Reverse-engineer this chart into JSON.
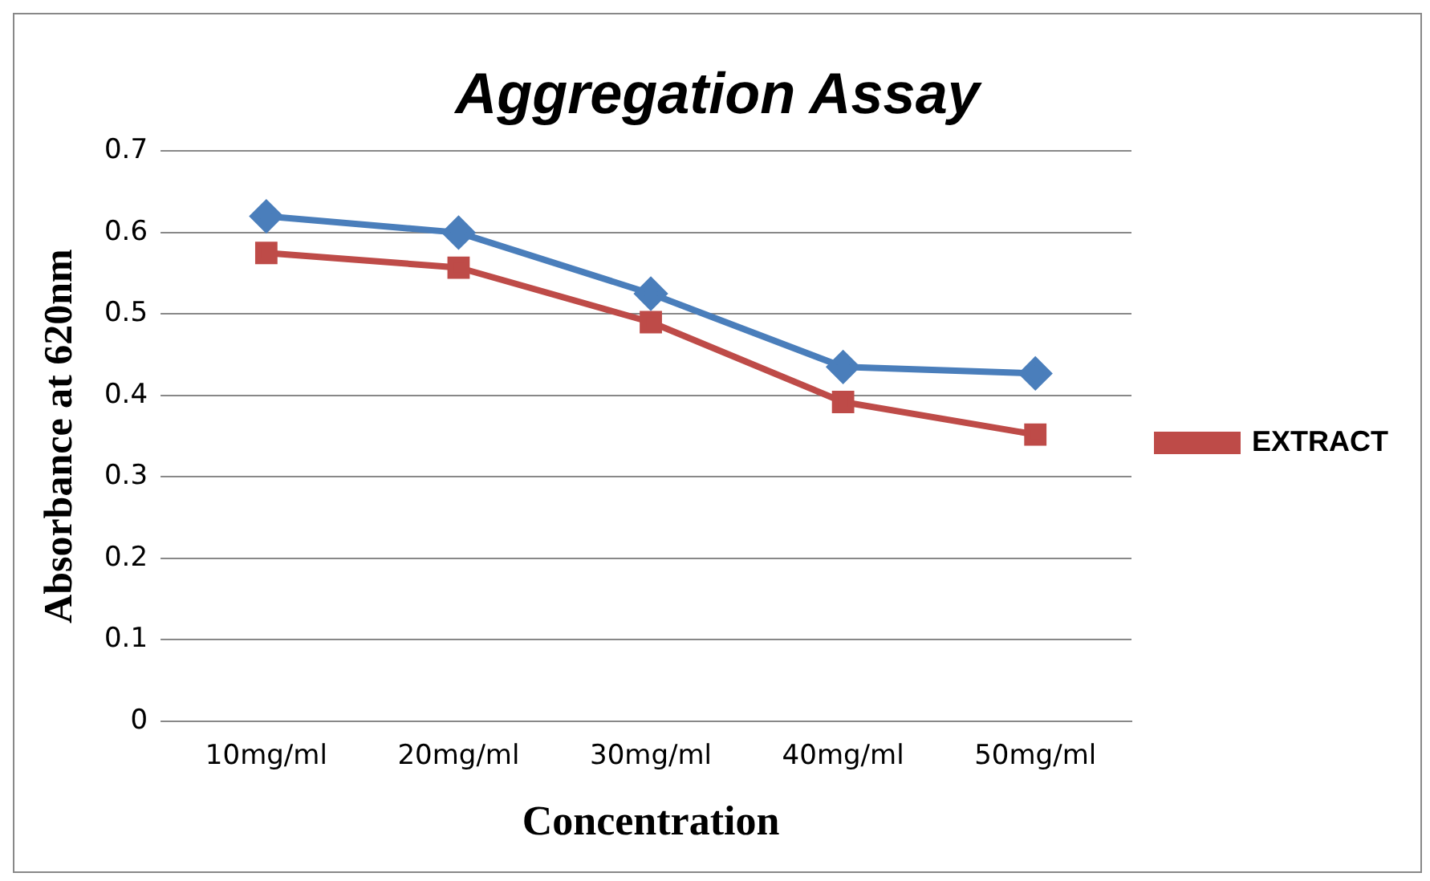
{
  "chart_data": {
    "type": "line",
    "title": "Aggregation Assay",
    "xlabel": "Concentration",
    "ylabel": "Absorbance at 620nm",
    "categories": [
      "10mg/ml",
      "20mg/ml",
      "30mg/ml",
      "40mg/ml",
      "50mg/ml"
    ],
    "series": [
      {
        "color": "#4a7ebb",
        "marker": "diamond",
        "values": [
          0.62,
          0.6,
          0.525,
          0.435,
          0.427
        ]
      },
      {
        "name": "EXTRACT",
        "color": "#be4b48",
        "marker": "square",
        "values": [
          0.575,
          0.557,
          0.49,
          0.392,
          0.352
        ]
      }
    ],
    "ylim": [
      0,
      0.7
    ],
    "yticks": [
      0,
      0.1,
      0.2,
      0.3,
      0.4,
      0.5,
      0.6,
      0.7
    ],
    "grid": "y",
    "legend": "right"
  }
}
